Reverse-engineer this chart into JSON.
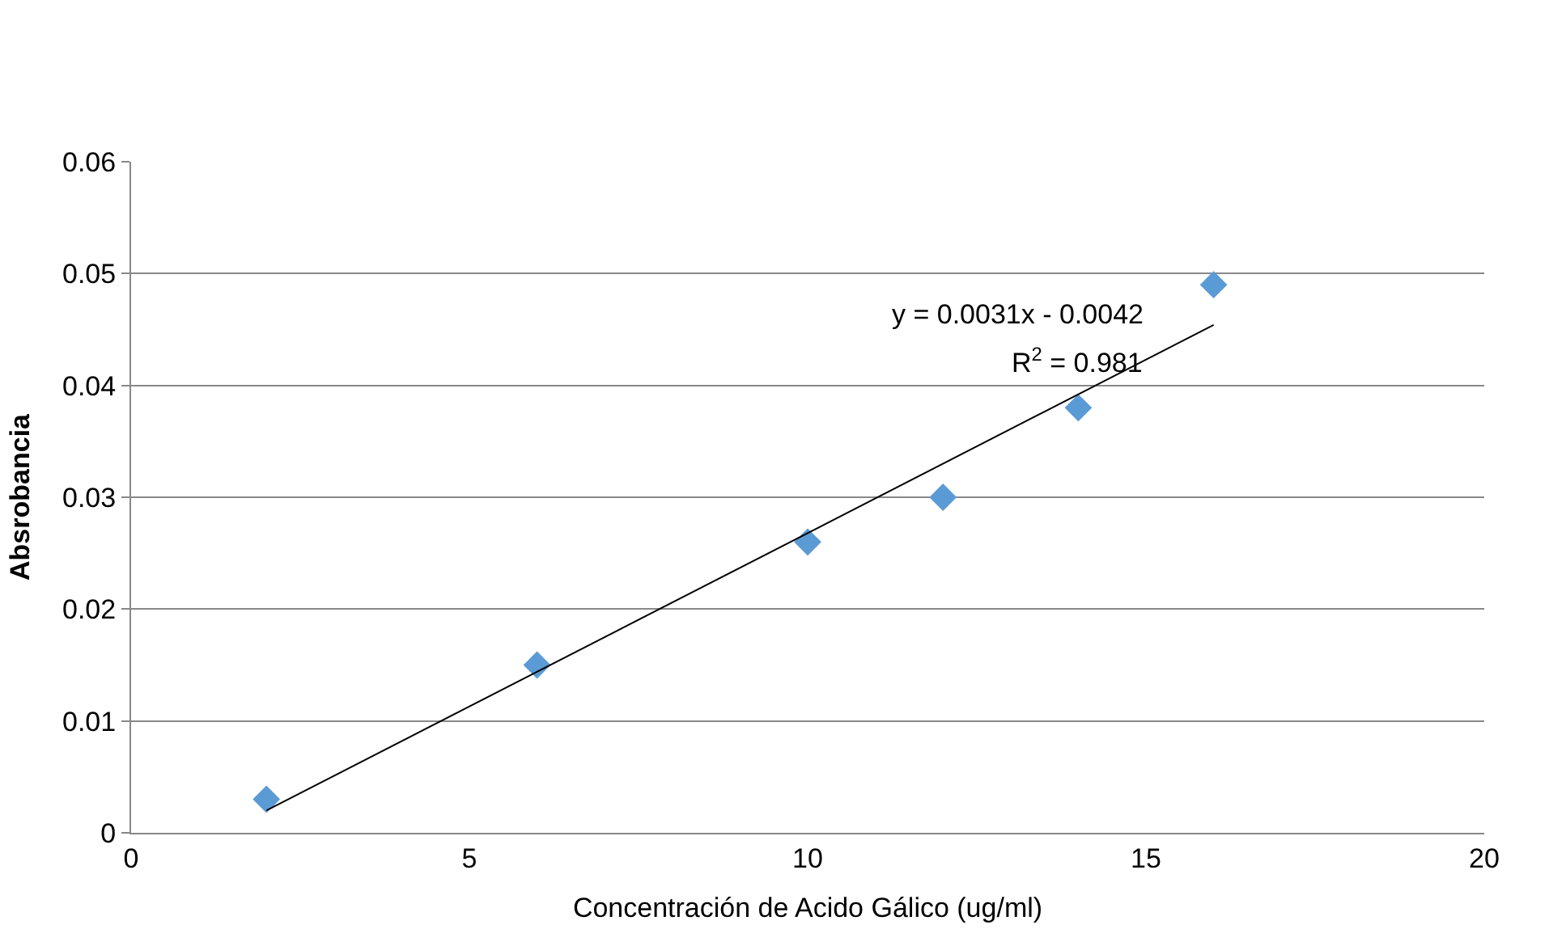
{
  "chart_data": {
    "type": "scatter",
    "xlabel": "Concentración de Acido Gálico (ug/ml)",
    "ylabel": "Absrobancia",
    "xlim": [
      0,
      20
    ],
    "xticks": [
      0,
      5,
      10,
      15,
      20
    ],
    "ylim": [
      0,
      0.06
    ],
    "yticks": [
      0,
      0.01,
      0.02,
      0.03,
      0.04,
      0.05,
      0.06
    ],
    "grid": "y",
    "marker": "diamond",
    "series": [
      {
        "color": "#5b9bd5",
        "x": [
          2,
          6,
          10,
          12,
          14,
          16
        ],
        "values": [
          0.003,
          0.015,
          0.026,
          0.03,
          0.038,
          0.049
        ]
      },
      {
        "type": "line",
        "marker": "none",
        "color": "#000000",
        "x": [
          2,
          16
        ],
        "values": [
          0.002,
          0.0454
        ]
      }
    ],
    "annotations": [
      "y = 0.0031x - 0.0042",
      "R$^{2}$ = 0.981"
    ]
  }
}
